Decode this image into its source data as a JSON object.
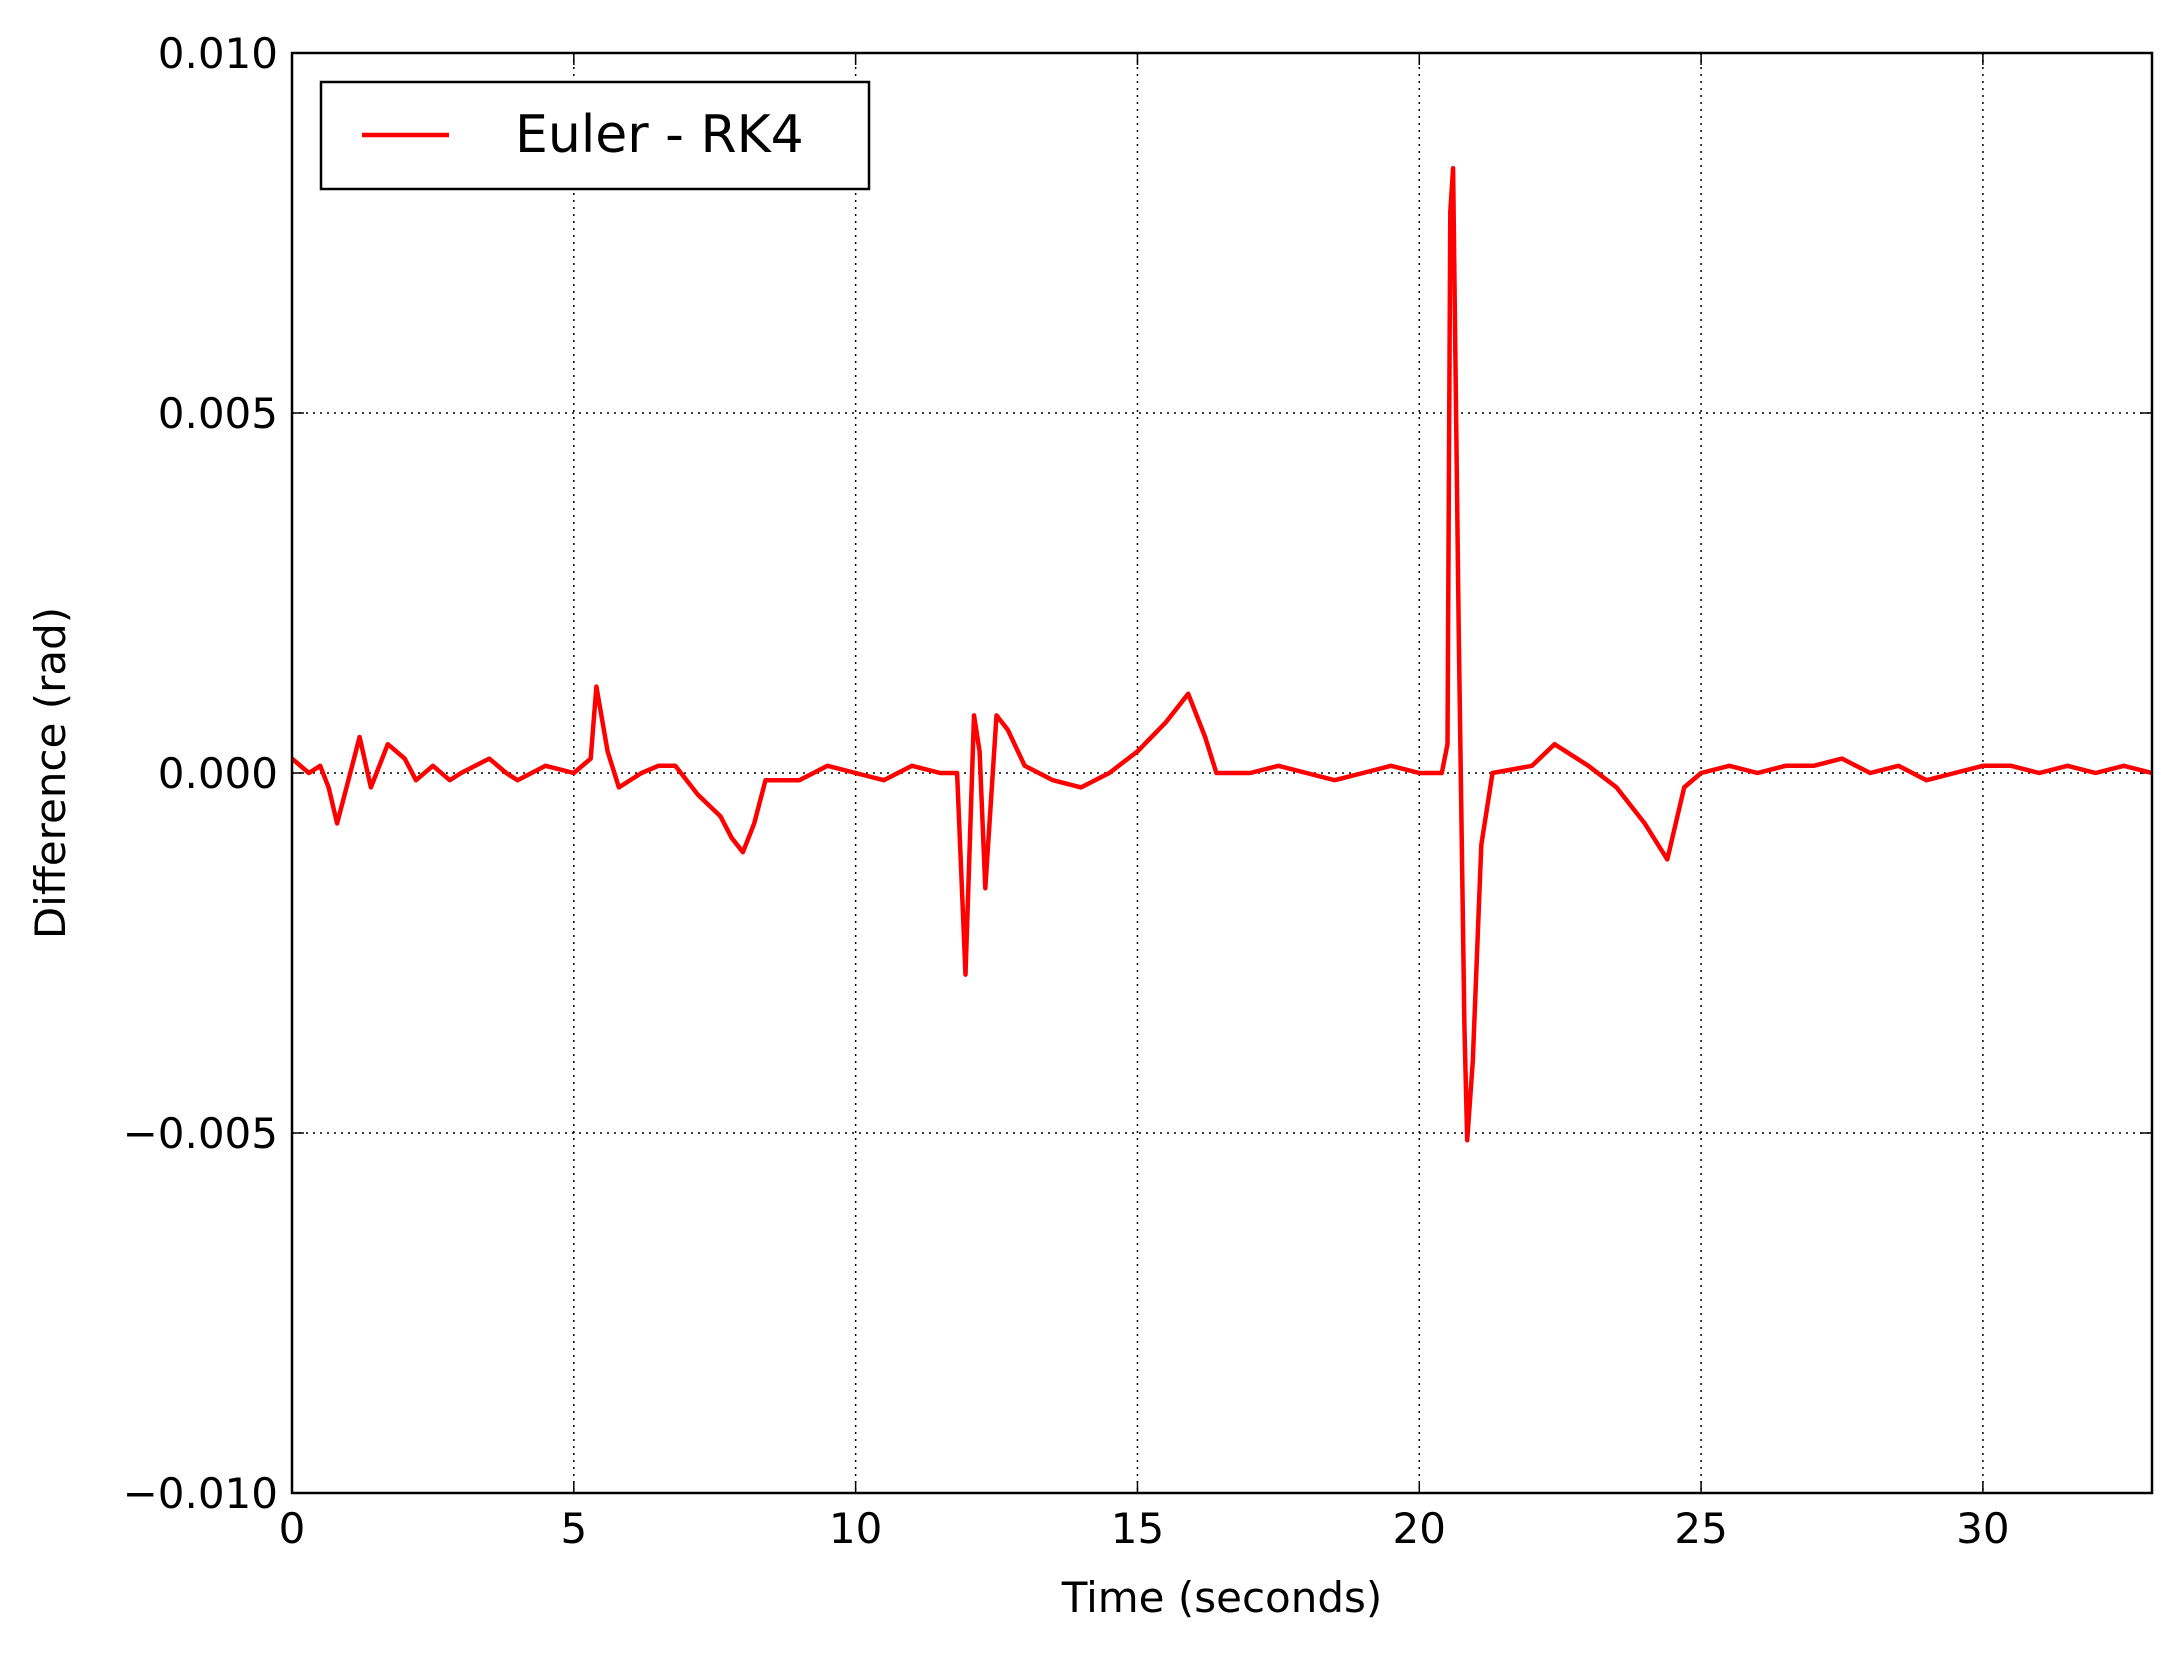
{
  "chart_data": {
    "type": "line",
    "xlabel": "Time (seconds)",
    "ylabel": "Difference (rad)",
    "x": [
      0,
      0.3,
      0.5,
      0.65,
      0.8,
      1.0,
      1.2,
      1.4,
      1.7,
      2.0,
      2.2,
      2.5,
      2.8,
      3.0,
      3.5,
      3.8,
      4.0,
      4.5,
      5.0,
      5.3,
      5.4,
      5.6,
      5.8,
      6.2,
      6.5,
      6.8,
      7.2,
      7.6,
      7.8,
      8.0,
      8.2,
      8.4,
      9.0,
      9.5,
      10.0,
      10.5,
      11.0,
      11.5,
      11.8,
      11.95,
      12.1,
      12.2,
      12.3,
      12.5,
      12.7,
      13.0,
      13.5,
      14.0,
      14.5,
      15.0,
      15.5,
      15.9,
      16.2,
      16.4,
      17.0,
      17.5,
      18.0,
      18.5,
      19.0,
      19.5,
      20.0,
      20.4,
      20.5,
      20.55,
      20.6,
      20.7,
      20.8,
      20.85,
      20.95,
      21.1,
      21.3,
      22.0,
      22.4,
      23.0,
      23.5,
      24.0,
      24.4,
      24.7,
      25.0,
      25.5,
      26.0,
      26.5,
      27.0,
      27.5,
      28.0,
      28.5,
      29.0,
      29.5,
      30.0,
      30.5,
      31.0,
      31.5,
      32.0,
      32.5,
      33.0
    ],
    "xlim": [
      0,
      33
    ],
    "xticks": [
      0,
      5,
      10,
      15,
      20,
      25,
      30
    ],
    "ylim": [
      -0.01,
      0.01
    ],
    "yticks": [
      {
        "value": -0.01,
        "label": "−0.010"
      },
      {
        "value": -0.005,
        "label": "−0.005"
      },
      {
        "value": 0,
        "label": "0.000"
      },
      {
        "value": 0.005,
        "label": "0.005"
      },
      {
        "value": 0.01,
        "label": "0.010"
      }
    ],
    "grid": true,
    "legend": "upper left",
    "series": [
      {
        "name": "Euler - RK4",
        "color": "#ff0000",
        "values": [
          0.0002,
          0.0,
          0.0001,
          -0.0002,
          -0.0007,
          -0.0001,
          0.0005,
          -0.0002,
          0.0004,
          0.0002,
          -0.0001,
          0.0001,
          -0.0001,
          0.0,
          0.0002,
          0.0,
          -0.0001,
          0.0001,
          0.0,
          0.0002,
          0.0012,
          0.0003,
          -0.0002,
          0.0,
          0.0001,
          0.0001,
          -0.0003,
          -0.0006,
          -0.0009,
          -0.0011,
          -0.0007,
          -0.0001,
          -0.0001,
          0.0001,
          0.0,
          -0.0001,
          0.0001,
          0.0,
          0.0,
          -0.0028,
          0.0008,
          0.0003,
          -0.0016,
          0.0008,
          0.0006,
          0.0001,
          -0.0001,
          -0.0002,
          0.0,
          0.0003,
          0.0007,
          0.0011,
          0.0005,
          0.0,
          0.0,
          0.0001,
          0.0,
          -0.0001,
          0.0,
          0.0001,
          0.0,
          0.0,
          0.0004,
          0.0078,
          0.0084,
          0.002,
          -0.0035,
          -0.0051,
          -0.004,
          -0.001,
          0.0,
          0.0001,
          0.0004,
          0.0001,
          -0.0002,
          -0.0007,
          -0.0012,
          -0.0002,
          0.0,
          0.0001,
          0.0,
          0.0001,
          0.0001,
          0.0002,
          0.0,
          0.0001,
          -0.0001,
          0.0,
          0.0001,
          0.0001,
          0.0,
          0.0001,
          0.0,
          0.0001,
          0.0
        ]
      }
    ]
  }
}
